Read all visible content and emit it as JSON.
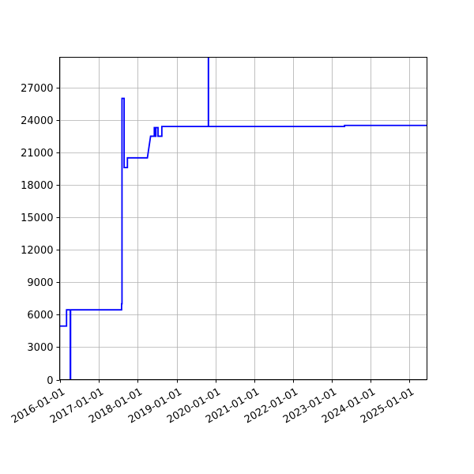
{
  "chart_data": {
    "type": "line",
    "title": "",
    "xlabel": "",
    "ylabel": "",
    "grid": true,
    "x_axis": {
      "kind": "date",
      "range": [
        "2015-12-27",
        "2025-06-15"
      ],
      "ticks": [
        "2016-01-01",
        "2017-01-01",
        "2018-01-01",
        "2019-01-01",
        "2020-01-01",
        "2021-01-01",
        "2022-01-01",
        "2023-01-01",
        "2024-01-01",
        "2025-01-01"
      ]
    },
    "y_axis": {
      "range": [
        0,
        29800
      ],
      "ticks": [
        0,
        3000,
        6000,
        9000,
        12000,
        15000,
        18000,
        21000,
        24000,
        27000
      ]
    },
    "series": [
      {
        "color": "#0000ff",
        "step": "post",
        "points": [
          [
            "2015-12-27",
            4950
          ],
          [
            "2016-03-01",
            4950
          ],
          [
            "2016-03-01",
            6450
          ],
          [
            "2016-04-05",
            6450
          ],
          [
            "2016-04-05",
            0
          ],
          [
            "2016-04-08",
            0
          ],
          [
            "2016-04-08",
            6450
          ],
          [
            "2017-08-01",
            6450
          ],
          [
            "2017-08-01",
            7000
          ],
          [
            "2017-08-05",
            7000
          ],
          [
            "2017-08-05",
            26000
          ],
          [
            "2017-08-25",
            26000
          ],
          [
            "2017-08-25",
            19600
          ],
          [
            "2017-09-25",
            19600
          ],
          [
            "2017-09-25",
            20500
          ],
          [
            "2018-04-01",
            20500
          ],
          [
            "2018-05-01",
            22500
          ],
          [
            "2018-06-05",
            22500
          ],
          [
            "2018-06-05",
            23300
          ],
          [
            "2018-06-15",
            23300
          ],
          [
            "2018-06-15",
            22500
          ],
          [
            "2018-06-20",
            22500
          ],
          [
            "2018-06-20",
            23300
          ],
          [
            "2018-07-10",
            23300
          ],
          [
            "2018-07-10",
            22500
          ],
          [
            "2018-08-15",
            22500
          ],
          [
            "2018-08-15",
            23400
          ],
          [
            "2019-10-27",
            23400
          ],
          [
            "2019-10-27",
            29800
          ],
          [
            "2019-10-28",
            29800
          ],
          [
            "2019-10-28",
            23400
          ],
          [
            "2023-05-01",
            23400
          ],
          [
            "2023-05-01",
            23500
          ],
          [
            "2025-06-15",
            23500
          ]
        ]
      }
    ]
  }
}
